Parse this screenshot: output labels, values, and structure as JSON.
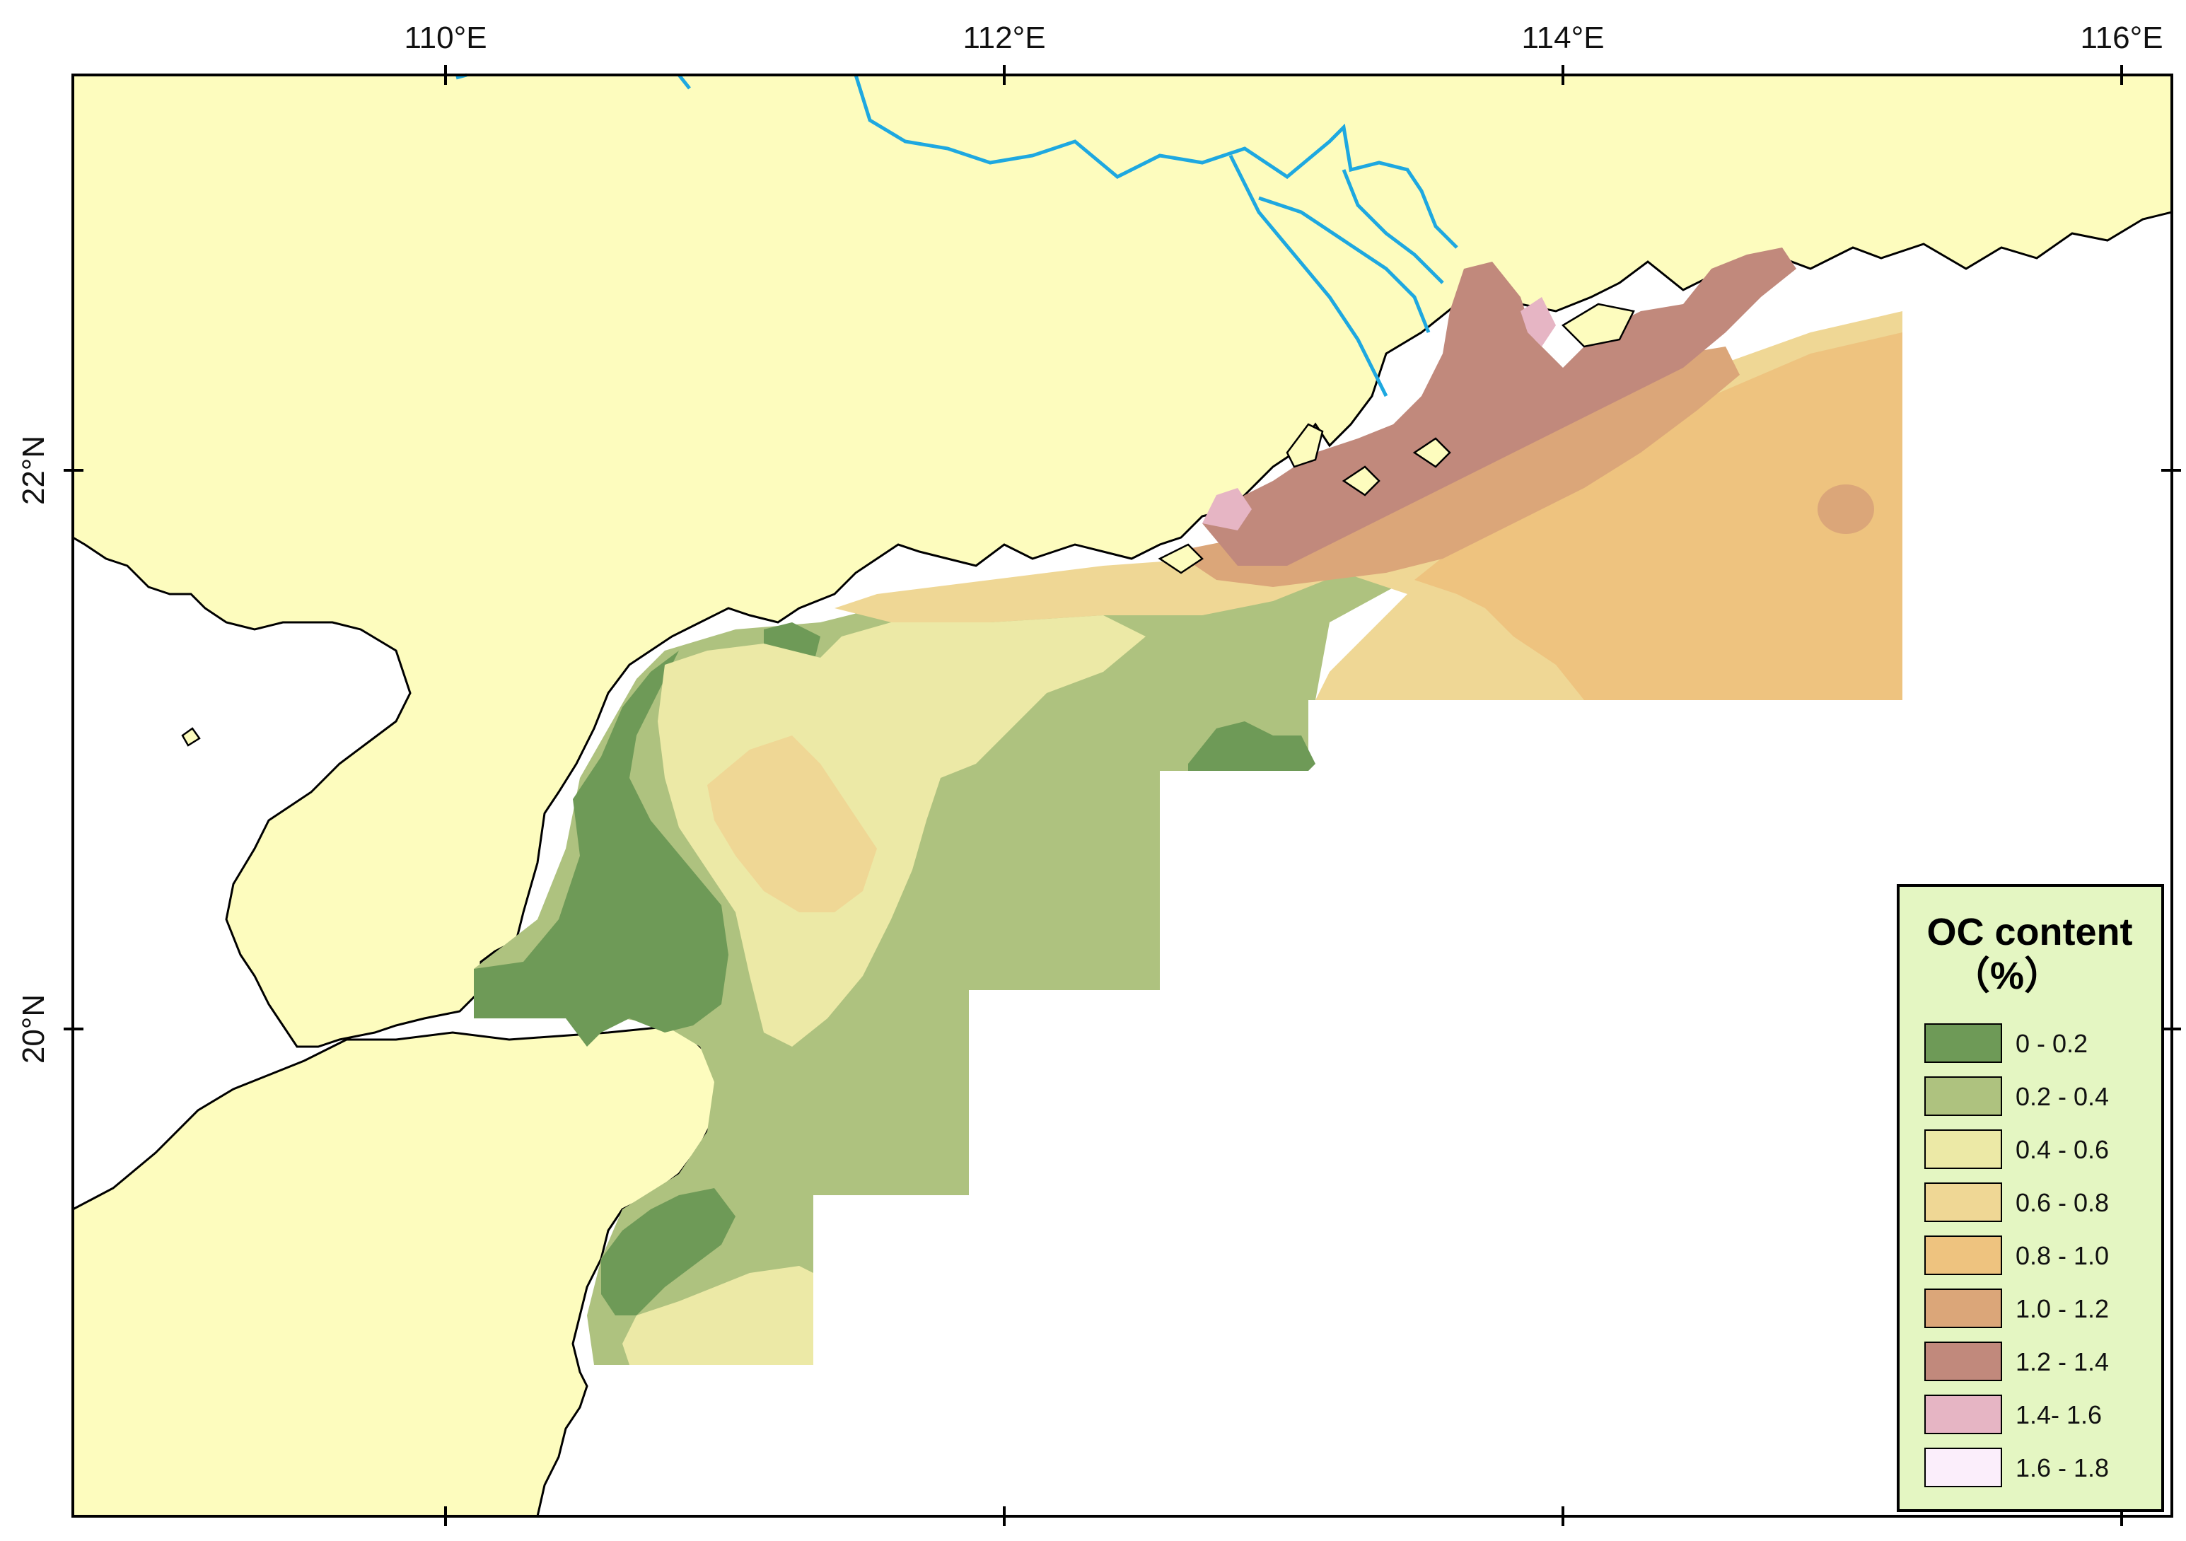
{
  "map": {
    "lon_ticks": [
      "110°E",
      "112°E",
      "114°E",
      "116°E"
    ],
    "lat_ticks": [
      "22°N",
      "20°N"
    ]
  },
  "legend": {
    "title_line1": "OC content",
    "title_line2": "（%）",
    "classes": [
      {
        "label": "0 - 0.2",
        "color": "#6e9a57"
      },
      {
        "label": "0.2 - 0.4",
        "color": "#aec27f"
      },
      {
        "label": "0.4 - 0.6",
        "color": "#ece9a6"
      },
      {
        "label": "0.6 - 0.8",
        "color": "#efd795"
      },
      {
        "label": "0.8 - 1.0",
        "color": "#eec37f"
      },
      {
        "label": "1.0 - 1.2",
        "color": "#dba679"
      },
      {
        "label": "1.2 - 1.4",
        "color": "#c1897c"
      },
      {
        "label": "1.4- 1.6",
        "color": "#e6b5c4"
      },
      {
        "label": "1.6 - 1.8",
        "color": "#fbeefb"
      }
    ],
    "background": "#e4f6c2"
  },
  "colors": {
    "land": "#fdfcbe",
    "sea": "#ffffff",
    "river": "#1ea8e0",
    "coastline": "#000000"
  }
}
